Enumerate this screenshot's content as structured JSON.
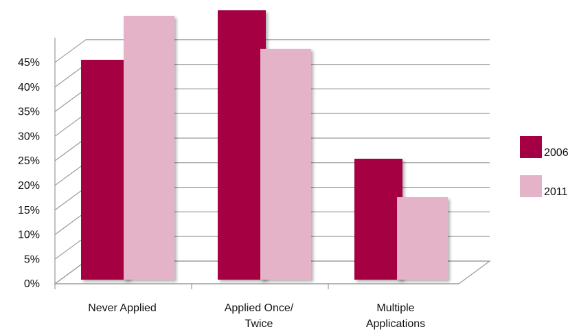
{
  "chart_data": {
    "type": "bar",
    "categories": [
      "Never Applied",
      "Applied Once/\nTwice",
      "Multiple\nApplications"
    ],
    "series": [
      {
        "name": "2006",
        "color": "#a50043",
        "values": [
          40,
          49,
          22
        ]
      },
      {
        "name": "2011",
        "color": "#e5b3c7",
        "values": [
          48,
          42,
          15
        ]
      }
    ],
    "ylim": [
      0,
      50
    ],
    "yticks": [
      {
        "value": 0,
        "label": "0%"
      },
      {
        "value": 5,
        "label": "5%"
      },
      {
        "value": 10,
        "label": "10%"
      },
      {
        "value": 15,
        "label": "15%"
      },
      {
        "value": 20,
        "label": "20%"
      },
      {
        "value": 25,
        "label": "25%"
      },
      {
        "value": 30,
        "label": "30%"
      },
      {
        "value": 35,
        "label": "35%"
      },
      {
        "value": 40,
        "label": "40%"
      },
      {
        "value": 45,
        "label": "45%"
      }
    ],
    "grid": true,
    "legend": "right"
  }
}
